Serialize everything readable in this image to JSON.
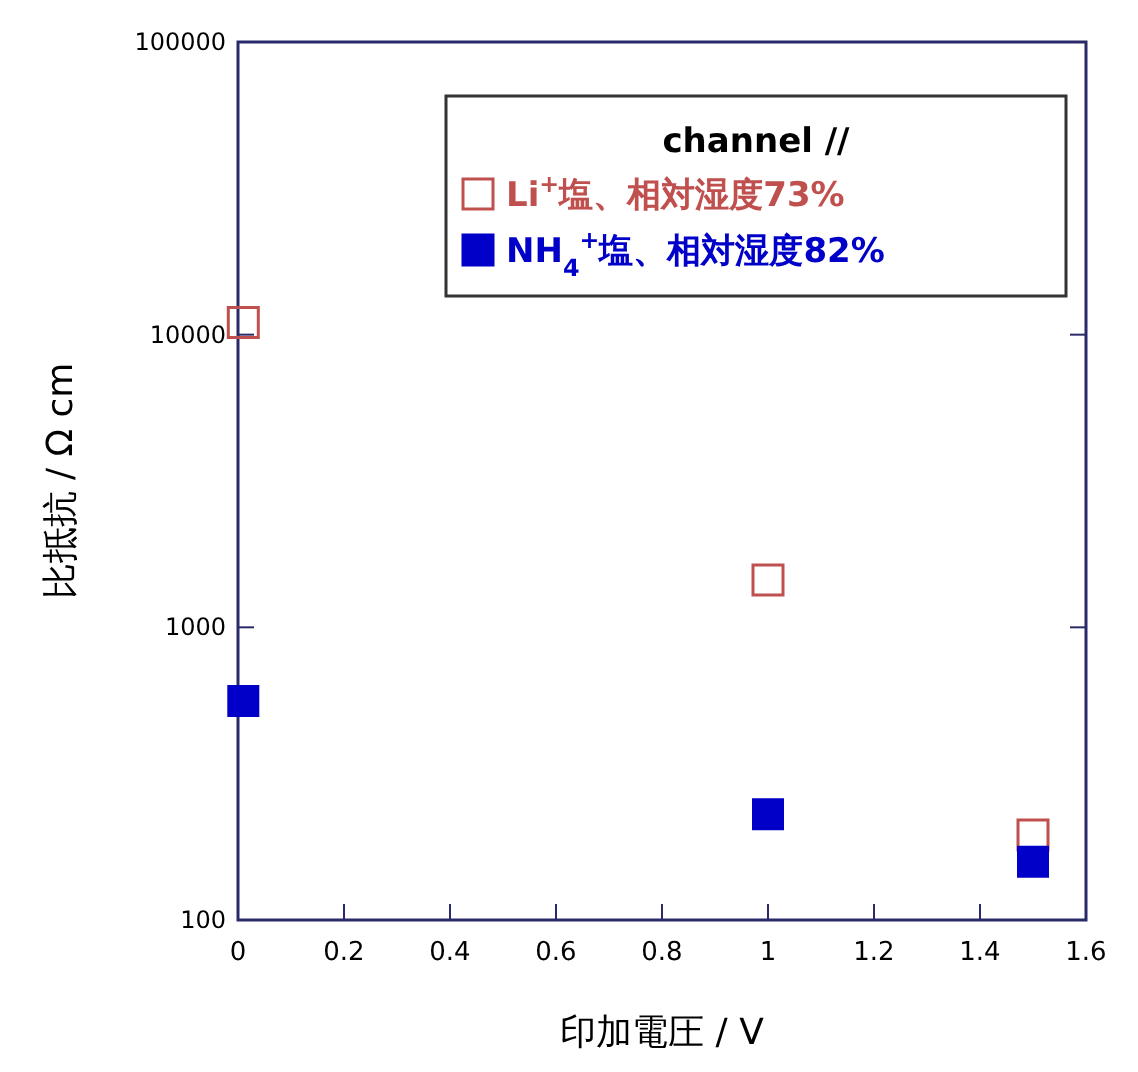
{
  "chart_data": {
    "type": "scatter",
    "xlabel": "印加電圧 / V",
    "ylabel": "比抵抗 / Ω cm",
    "legend_title": "channel //",
    "legend": "top right",
    "marker": "square",
    "log": "y",
    "xlim": [
      0,
      1.6
    ],
    "xticks": [
      0,
      0.2,
      0.4,
      0.6,
      0.8,
      1,
      1.2,
      1.4,
      1.6
    ],
    "ylim": [
      100,
      100000
    ],
    "yticks": [
      100,
      1000,
      10000,
      100000
    ],
    "grid": false,
    "series": [
      {
        "name": "Li$^{+}$塩、相対湿度73%",
        "color": "#c0504d",
        "x": [
          0.01,
          1,
          1.5
        ],
        "values": [
          11000,
          1450,
          195
        ]
      },
      {
        "name": "NH$_{4}$$^{+}$塩、相対湿度82%",
        "color": "#0000c8",
        "x": [
          0.01,
          1,
          1.5
        ],
        "values": [
          560,
          230,
          158
        ]
      }
    ]
  }
}
